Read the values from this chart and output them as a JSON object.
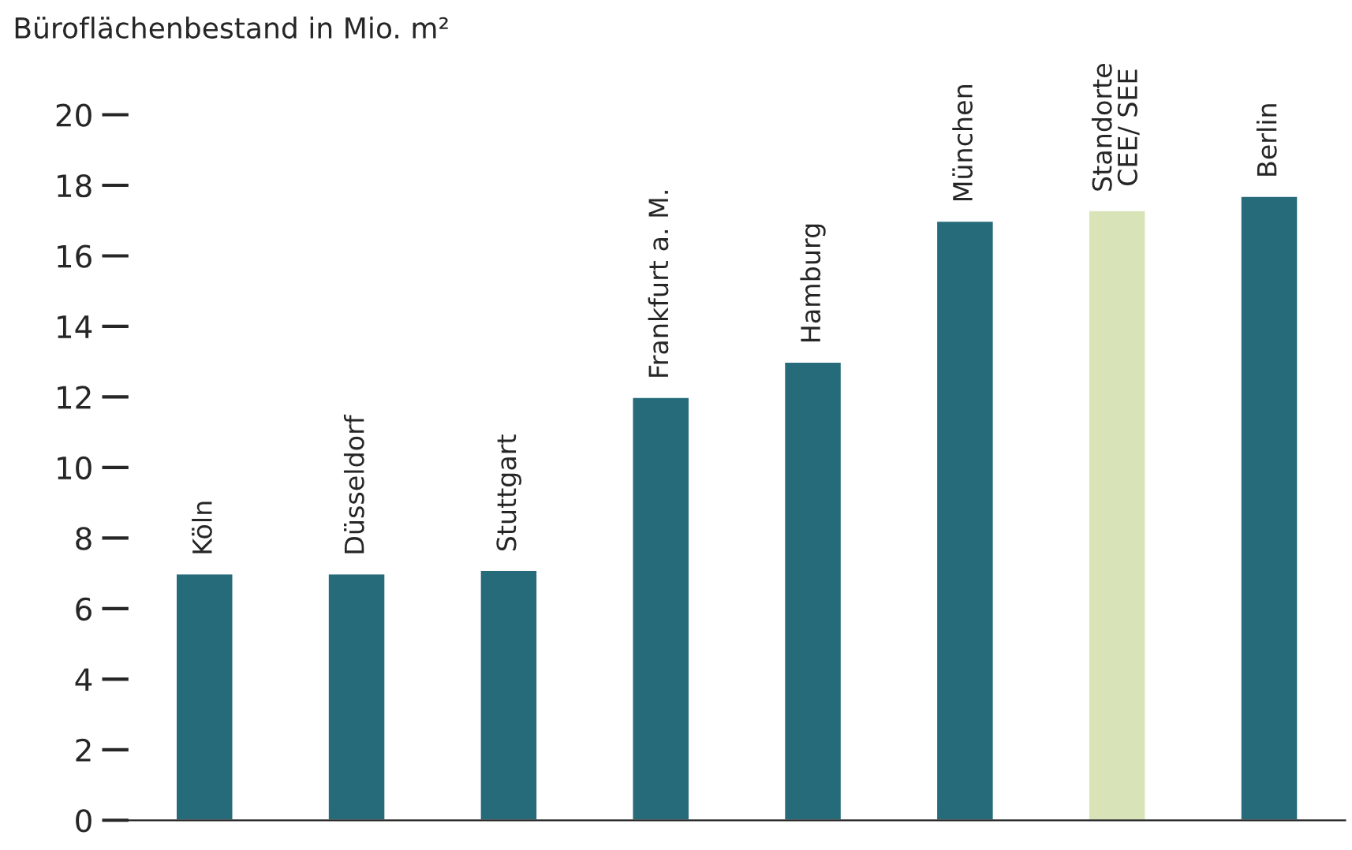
{
  "chart_data": {
    "type": "bar",
    "ylabel": "Büroflächenbestand in Mio. m²",
    "categories": [
      "Köln",
      "Düsseldorf",
      "Stuttgart",
      "Frankfurt a. M.",
      "Hamburg",
      "München",
      "Standorte\nCEE/ SEE",
      "Berlin"
    ],
    "values": [
      7.0,
      7.0,
      7.1,
      12.0,
      13.0,
      17.0,
      17.3,
      17.7
    ],
    "colors": [
      "#256b7a",
      "#256b7a",
      "#256b7a",
      "#256b7a",
      "#256b7a",
      "#256b7a",
      "#d8e4b8",
      "#256b7a"
    ],
    "ylim": [
      0,
      20
    ],
    "yticks": [
      0,
      2,
      4,
      6,
      8,
      10,
      12,
      14,
      16,
      18,
      20
    ],
    "grid": false
  }
}
